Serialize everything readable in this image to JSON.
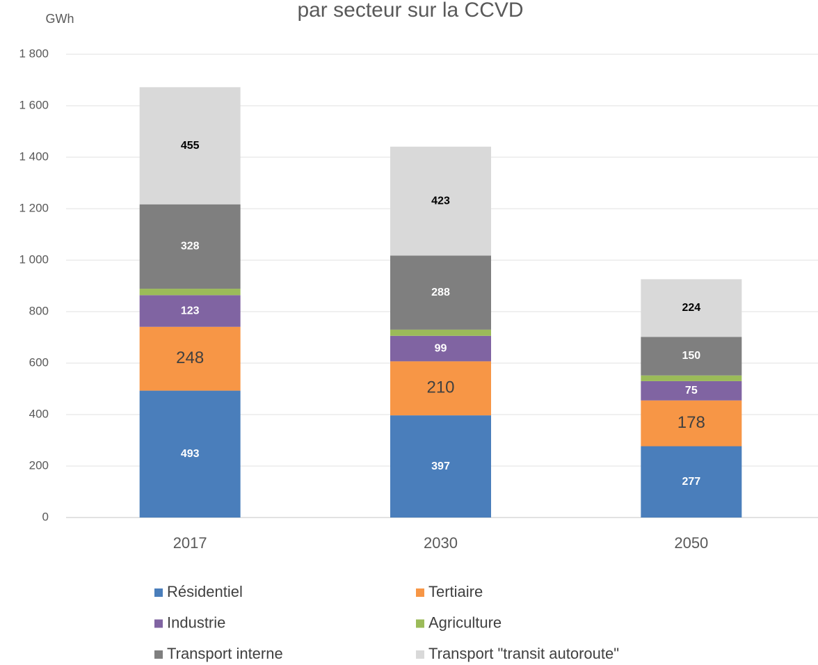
{
  "chart_data": {
    "type": "bar",
    "stacked": true,
    "title": "par secteur sur la CCVD",
    "y_label": "GWh",
    "categories": [
      "2017",
      "2030",
      "2050"
    ],
    "series": [
      {
        "name": "Résidentiel",
        "color": "#4a7ebb",
        "values": [
          493,
          397,
          277
        ]
      },
      {
        "name": "Tertiaire",
        "color": "#f79646",
        "values": [
          248,
          210,
          178
        ]
      },
      {
        "name": "Industrie",
        "color": "#8064a2",
        "values": [
          123,
          99,
          75
        ]
      },
      {
        "name": "Agriculture",
        "color": "#9bbb59",
        "values": [
          25,
          24,
          22
        ]
      },
      {
        "name": "Transport interne",
        "color": "#7f7f7f",
        "values": [
          328,
          288,
          150
        ]
      },
      {
        "name": "Transport \"transit autoroute\"",
        "color": "#d9d9d9",
        "values": [
          455,
          423,
          224
        ]
      }
    ],
    "ylim": [
      0,
      1800
    ],
    "yticks": [
      0,
      200,
      400,
      600,
      800,
      {
        "value": 1000,
        "label": "1 000"
      },
      {
        "value": 1200,
        "label": "1 200"
      },
      {
        "value": 1400,
        "label": "1 400"
      },
      {
        "value": 1600,
        "label": "1 600"
      },
      {
        "value": 1800,
        "label": "1 800"
      }
    ],
    "grid": true,
    "legend": "bottom"
  }
}
